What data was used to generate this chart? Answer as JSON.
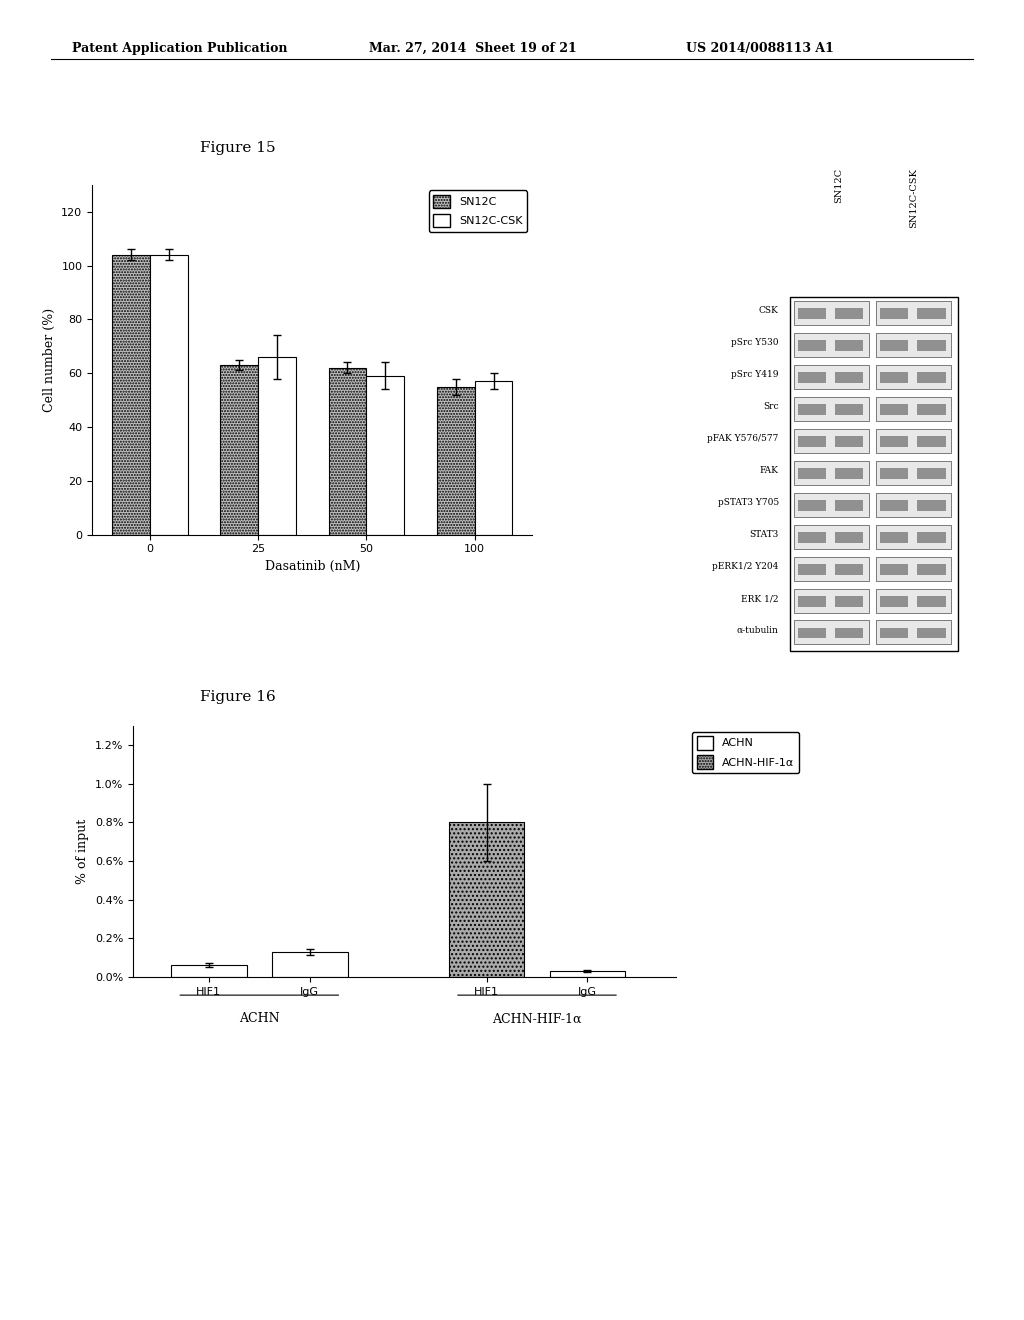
{
  "header_left": "Patent Application Publication",
  "header_mid": "Mar. 27, 2014  Sheet 19 of 21",
  "header_right": "US 2014/0088113 A1",
  "fig15_title": "Figure 15",
  "fig15_xlabel": "Dasatinib (nM)",
  "fig15_ylabel": "Cell number (%)",
  "fig15_xtick_labels": [
    "0",
    "25",
    "50",
    "100"
  ],
  "fig15_ylim": [
    0,
    130
  ],
  "fig15_yticks": [
    0,
    20,
    40,
    60,
    80,
    100,
    120
  ],
  "fig15_sn12c_values": [
    104,
    63,
    62,
    55
  ],
  "fig15_sn12c_errors": [
    2,
    2,
    2,
    3
  ],
  "fig15_csk_values": [
    104,
    66,
    59,
    57
  ],
  "fig15_csk_errors": [
    2,
    8,
    5,
    3
  ],
  "fig15_legend_sn12c": "SN12C",
  "fig15_legend_csk": "SN12C-CSK",
  "fig16_title": "Figure 16",
  "fig16_ylabel": "% of input",
  "fig16_group1_label": "ACHN",
  "fig16_group2_label": "ACHN-HIF-1α",
  "fig16_bar_xlabels": [
    "HIF1",
    "IgG",
    "HIF1",
    "IgG"
  ],
  "fig16_values": [
    0.06,
    0.13,
    0.8,
    0.03
  ],
  "fig16_errors": [
    0.01,
    0.015,
    0.2,
    0.005
  ],
  "fig16_yticks": [
    0.0,
    0.2,
    0.4,
    0.6,
    0.8,
    1.0,
    1.2
  ],
  "fig16_yticklabels": [
    "0.0%",
    "0.2%",
    "0.4%",
    "0.6%",
    "0.8%",
    "1.0%",
    "1.2%"
  ],
  "fig16_ylim": [
    0,
    1.3
  ],
  "fig16_legend_achn": "ACHN",
  "fig16_legend_hif1a": "ACHN-HIF-1α",
  "fig16_bar_colors": [
    "white",
    "white",
    "#aaaaaa",
    "white"
  ],
  "fig16_bar_hatches": [
    "",
    "",
    "....",
    ""
  ],
  "blot_labels": [
    "CSK",
    "pSrc Y530",
    "pSrc Y419",
    "Src",
    "pFAK Y576/577",
    "FAK",
    "pSTAT3 Y705",
    "STAT3",
    "pERK1/2 Y204",
    "ERK 1/2",
    "α-tubulin"
  ],
  "blot_col_labels": [
    "SN12C",
    "SN12C-CSK"
  ],
  "background_color": "#ffffff"
}
